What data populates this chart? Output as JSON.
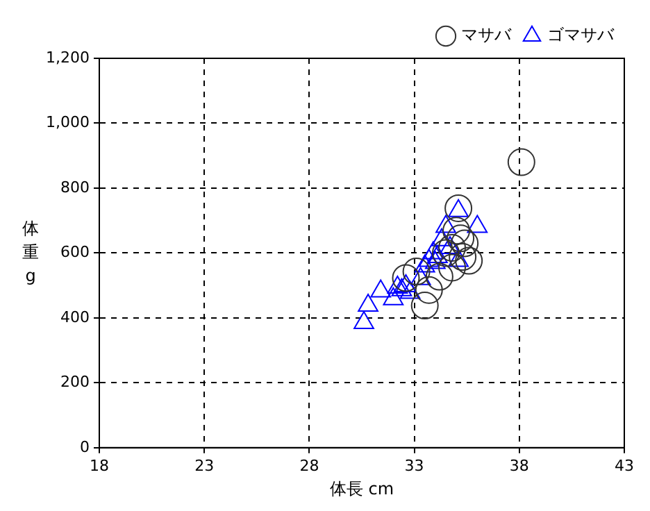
{
  "chart_data": {
    "type": "scatter",
    "xlabel": "体長 cm",
    "ylabel": "体重 g",
    "xlim": [
      18,
      43
    ],
    "xticks": [
      18,
      23,
      28,
      33,
      38,
      43
    ],
    "ylim": [
      0,
      1200
    ],
    "yticks": [
      0,
      200,
      400,
      600,
      800,
      {
        "value": 1000,
        "label": "1,000"
      },
      {
        "value": 1200,
        "label": "1,200"
      }
    ],
    "grid": true,
    "legend": "top right",
    "series": [
      {
        "name": "マサバ",
        "color": "#333333",
        "marker": "circle",
        "x": [
          38.1,
          35.1,
          35.0,
          35.2,
          34.8,
          35.3,
          35.6,
          34.8,
          34.2,
          33.7,
          33.5,
          32.6,
          33.1,
          34.5,
          35.4
        ],
        "values": [
          880,
          738,
          669,
          645,
          616,
          588,
          576,
          555,
          527,
          486,
          438,
          523,
          543,
          600,
          630
        ]
      },
      {
        "name": "ゴマサバ",
        "color": "#0000ff",
        "marker": "triangle",
        "x": [
          30.6,
          30.8,
          31.4,
          32.0,
          32.4,
          32.6,
          35.1,
          36.0,
          34.5,
          34.3,
          33.9,
          33.7,
          34.1,
          34.7,
          35.1,
          33.5,
          32.2,
          32.8,
          33.3,
          34.0
        ],
        "values": [
          385,
          438,
          482,
          458,
          486,
          498,
          730,
          681,
          681,
          640,
          600,
          576,
          588,
          616,
          576,
          559,
          494,
          478,
          520,
          570
        ]
      }
    ]
  }
}
